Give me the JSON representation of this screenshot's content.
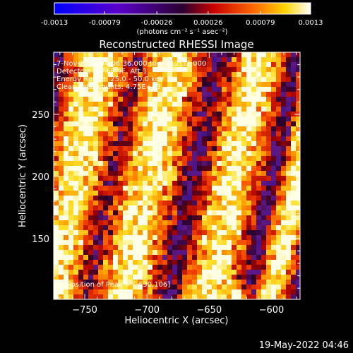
{
  "colorbar": {
    "tick_labels": [
      "-0.0013",
      "-0.00079",
      "-0.00026",
      "0.00026",
      "0.00079",
      "0.0013"
    ],
    "units": "(photons cm⁻² s⁻¹ asec⁻²)",
    "range": [
      -0.0013,
      0.0013
    ]
  },
  "chart_data": {
    "type": "heatmap",
    "title": "Reconstructed RHESSI Image",
    "xlabel": "Heliocentric X (arcsec)",
    "ylabel": "Heliocentric Y (arcsec)",
    "xlim": [
      -775,
      -577
    ],
    "ylim": [
      101,
      300
    ],
    "x_ticks": [
      -750,
      -700,
      -650,
      -600
    ],
    "y_ticks": [
      150,
      200,
      250
    ],
    "peak": [
      -630,
      106
    ],
    "colormap": "blue-purple-red-yellow-white"
  },
  "info": {
    "line1": "7-Nov-2014 04:06:36.000 to 04:12:32.000",
    "line2": "Detectors: 3F 6F 9F, Att 1",
    "line3": "Energy Range: 25.0 - 50.0 keV",
    "line4": "Clean    Total counts: 4.75E+03",
    "peak_text": "Position of Peak = [-630,106]"
  },
  "footer": {
    "date": "19-May-2022 04:46"
  }
}
